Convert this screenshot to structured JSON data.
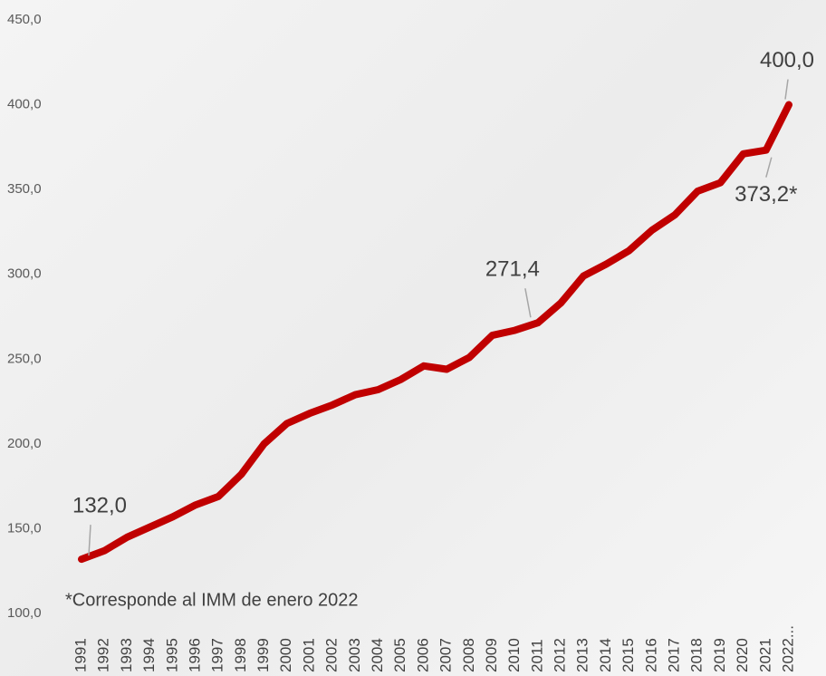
{
  "chart_data": {
    "type": "line",
    "categories": [
      "1991",
      "1992",
      "1993",
      "1994",
      "1995",
      "1996",
      "1997",
      "1998",
      "1999",
      "2000",
      "2001",
      "2002",
      "2003",
      "2004",
      "2005",
      "2006",
      "2007",
      "2008",
      "2009",
      "2010",
      "2011",
      "2012",
      "2013",
      "2014",
      "2015",
      "2016",
      "2017",
      "2018",
      "2019",
      "2020",
      "2021",
      "2022..."
    ],
    "series": [
      {
        "name": null,
        "color": "#c00000",
        "values": [
          132.0,
          137,
          145,
          151,
          157,
          164,
          169,
          182,
          200,
          212,
          218,
          223,
          229,
          232,
          238,
          246,
          244,
          251,
          264,
          267,
          271.4,
          283,
          299,
          306,
          314,
          326,
          335,
          349,
          354,
          371,
          373.2,
          400.0
        ],
        "value_labels": [
          "132,0",
          null,
          null,
          null,
          null,
          null,
          null,
          null,
          null,
          null,
          null,
          null,
          null,
          null,
          null,
          null,
          null,
          null,
          null,
          null,
          "271,4",
          null,
          null,
          null,
          null,
          null,
          null,
          null,
          null,
          null,
          "373,2*",
          "400,0"
        ]
      }
    ],
    "ylim": [
      100,
      450
    ],
    "yticks": [
      {
        "value": 100,
        "label": "100,0"
      },
      {
        "value": 150,
        "label": "150,0"
      },
      {
        "value": 200,
        "label": "200,0"
      },
      {
        "value": 250,
        "label": "250,0"
      },
      {
        "value": 300,
        "label": "300,0"
      },
      {
        "value": 350,
        "label": "350,0"
      },
      {
        "value": 400,
        "label": "400,0"
      },
      {
        "value": 450,
        "label": "450,0"
      }
    ],
    "annotation": "*Corresponde al IMM de enero 2022",
    "grid": false
  }
}
